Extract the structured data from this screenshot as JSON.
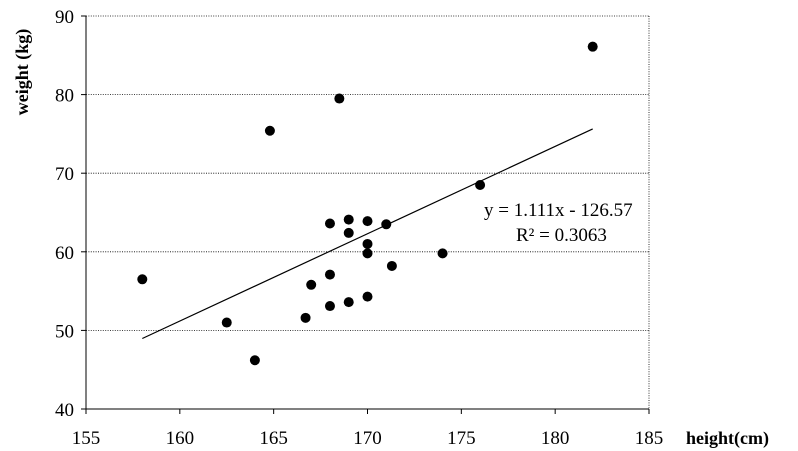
{
  "chart_data": {
    "type": "scatter",
    "title": "",
    "xlabel": "height(cm)",
    "ylabel": "weight (kg)",
    "xlim": [
      155,
      185
    ],
    "ylim": [
      40,
      90
    ],
    "xticks": [
      155,
      160,
      165,
      170,
      175,
      180,
      185
    ],
    "yticks": [
      40,
      50,
      60,
      70,
      80,
      90
    ],
    "grid": "horizontal dotted",
    "legend": "none",
    "series": [
      {
        "points": [
          [
            158,
            56.5
          ],
          [
            162.5,
            51
          ],
          [
            164,
            46.2
          ],
          [
            164.8,
            75.4
          ],
          [
            166.7,
            51.6
          ],
          [
            167,
            55.8
          ],
          [
            168,
            63.6
          ],
          [
            168,
            57.1
          ],
          [
            168,
            53.1
          ],
          [
            168.5,
            79.5
          ],
          [
            169,
            64.1
          ],
          [
            169,
            62.4
          ],
          [
            169,
            53.6
          ],
          [
            170,
            63.9
          ],
          [
            170,
            61
          ],
          [
            170,
            59.8
          ],
          [
            170,
            54.3
          ],
          [
            171,
            63.5
          ],
          [
            171.3,
            58.2
          ],
          [
            174,
            59.8
          ],
          [
            176,
            68.5
          ],
          [
            182,
            86.1
          ]
        ]
      }
    ],
    "trendline": {
      "slope": 1.111,
      "intercept": -126.57,
      "x_range": [
        158,
        182
      ]
    },
    "annotations": [
      "y = 1.111x - 126.57",
      "R² = 0.3063"
    ]
  }
}
